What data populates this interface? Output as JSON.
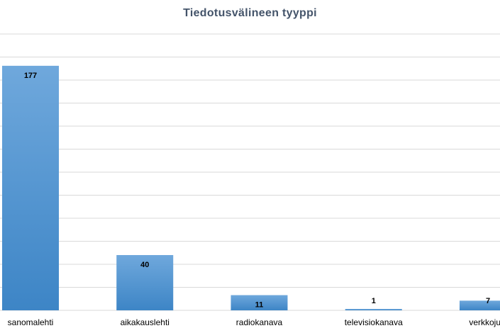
{
  "chart_data": {
    "type": "bar",
    "title": "Tiedotusvälineen tyyppi",
    "xlabel": "",
    "ylabel": "",
    "categories": [
      "sanomalehti",
      "aikakauslehti",
      "radiokanava",
      "televisiokanava",
      "verkkojulk"
    ],
    "values": [
      177,
      40,
      11,
      1,
      7
    ],
    "ylim": [
      0,
      200
    ],
    "grid": true,
    "legend": "none",
    "colors": {
      "bar_top": "#6fa8dc",
      "bar_bottom": "#3d85c6",
      "gridline": "#d9d9d9",
      "title": "#44546a"
    }
  }
}
